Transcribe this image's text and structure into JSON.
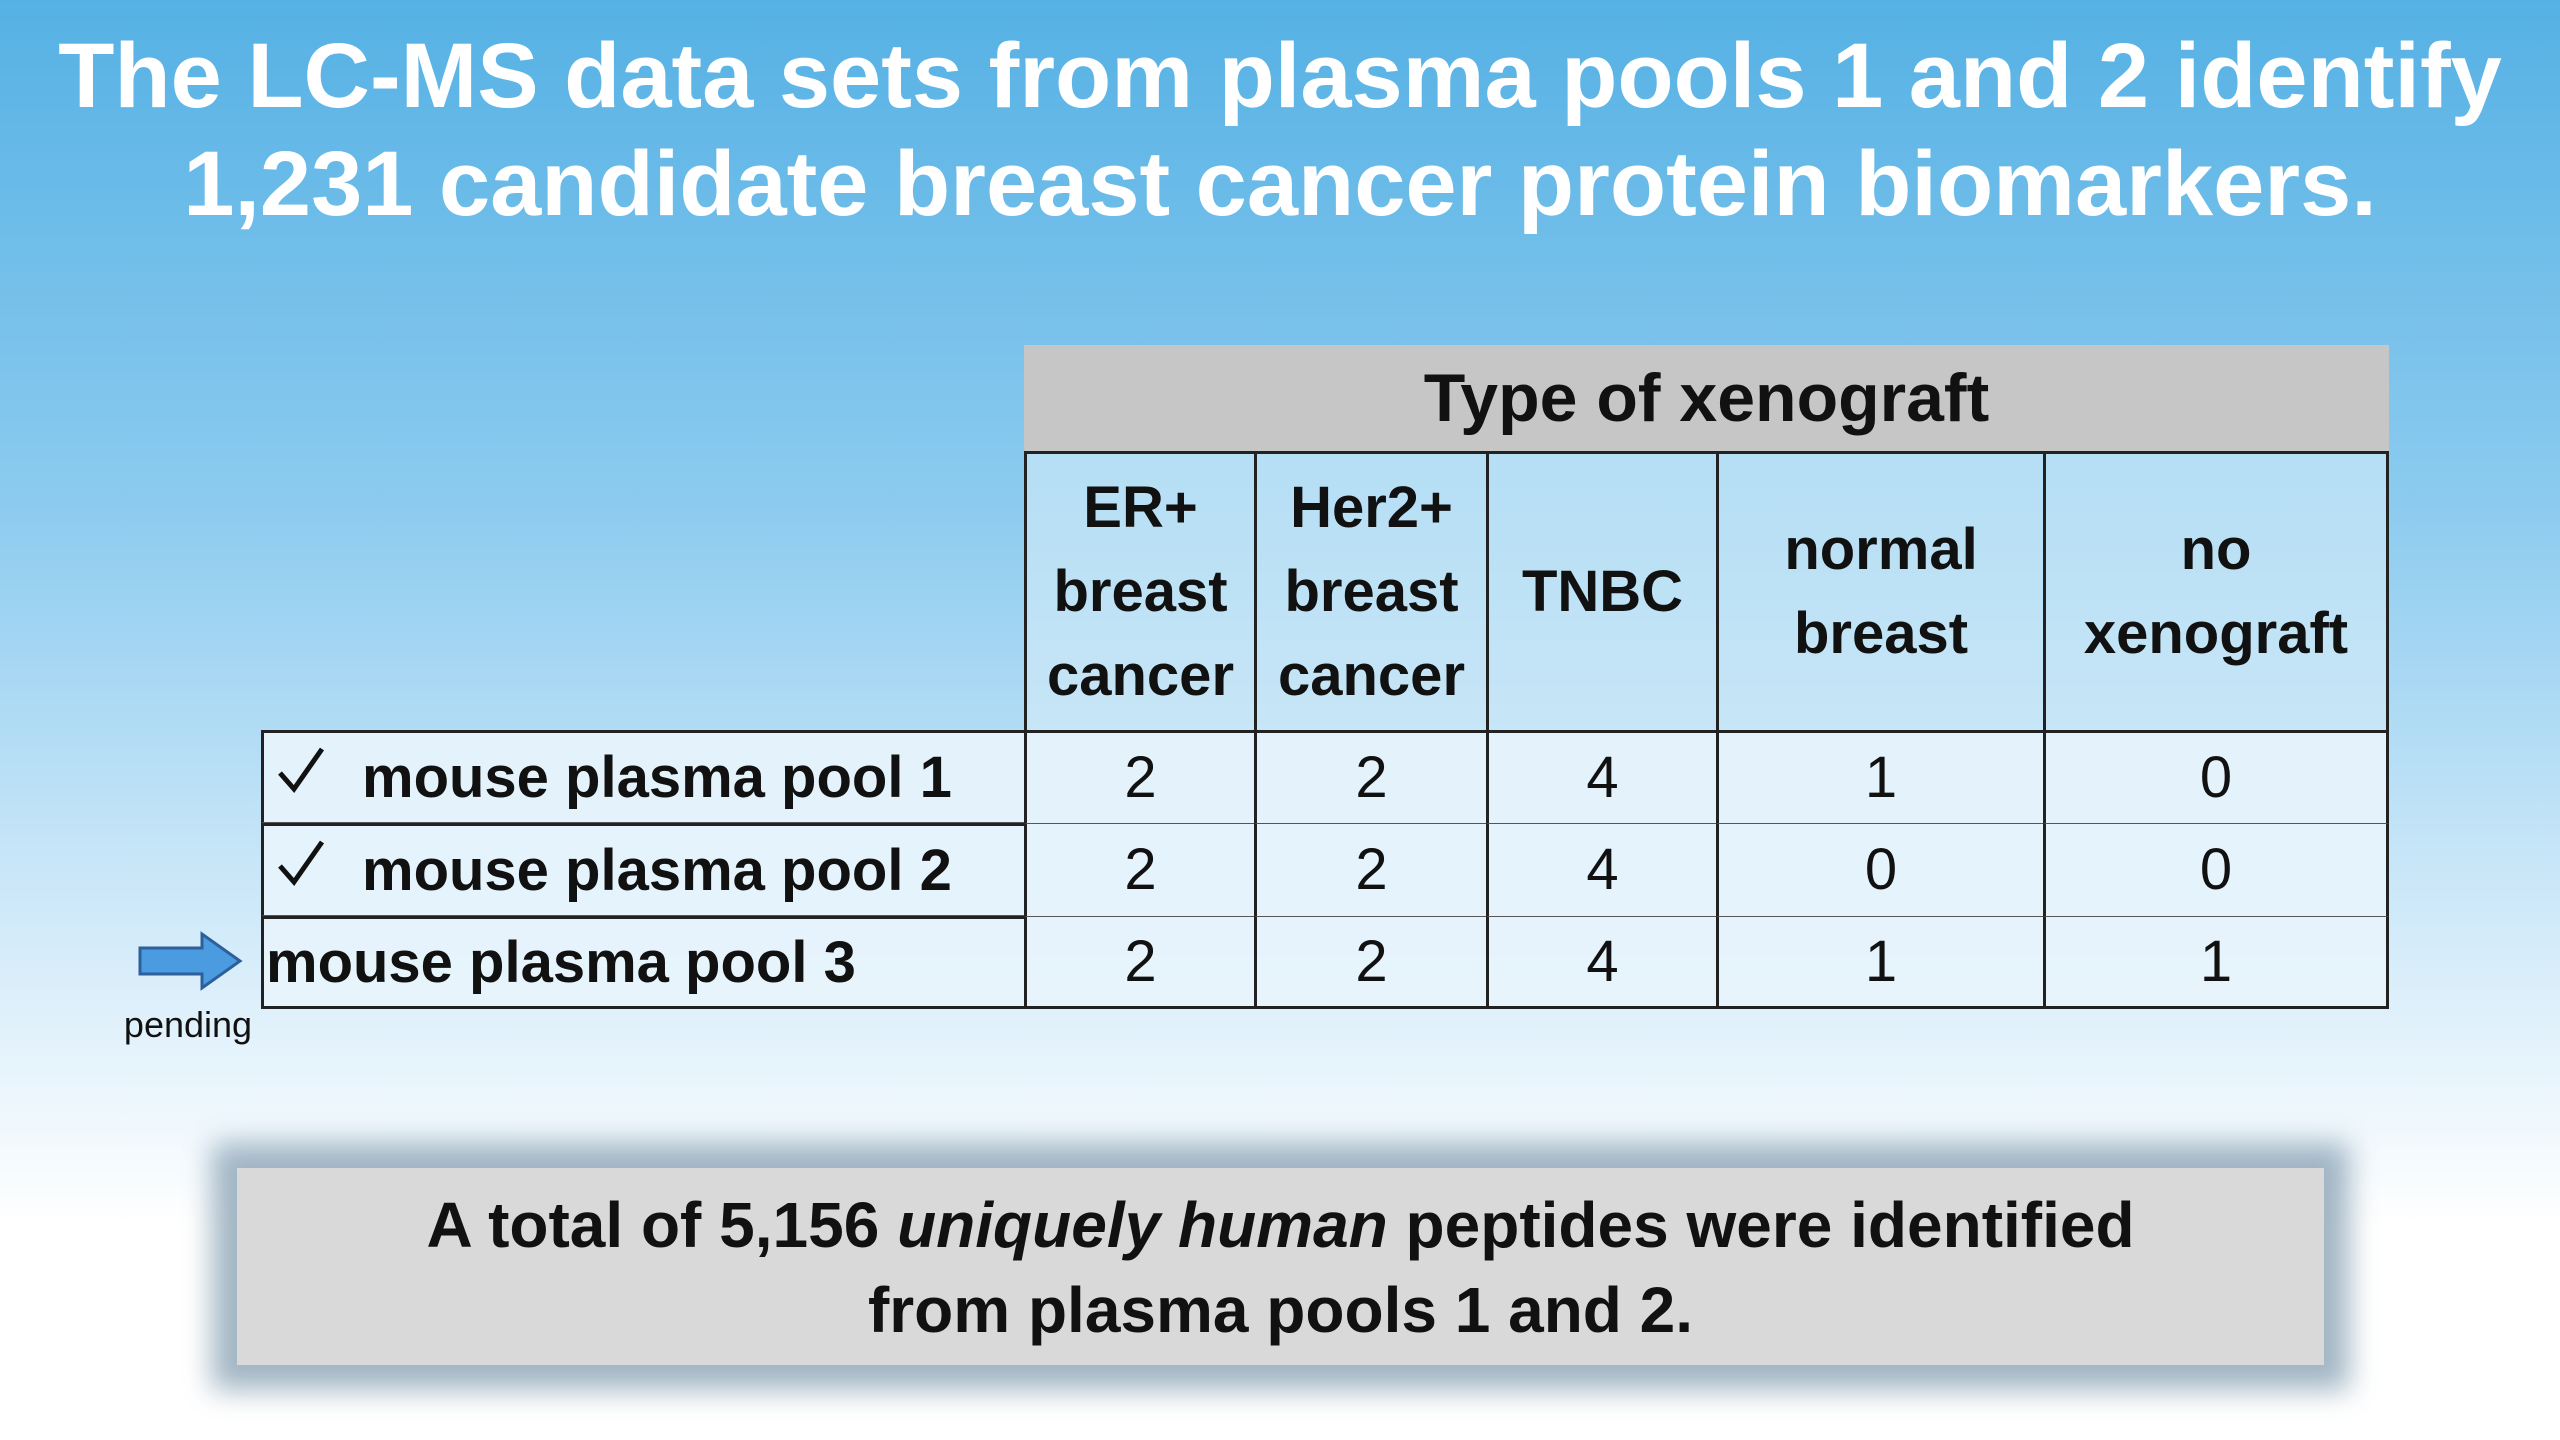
{
  "title": {
    "lines": [
      "The LC-MS data sets from plasma pools 1 and 2 identify",
      "1,231 candidate breast cancer protein biomarkers."
    ]
  },
  "table": {
    "group_header": "Type of xenograft",
    "columns": [
      [
        "ER+",
        "breast",
        "cancer"
      ],
      [
        "Her2+",
        "breast",
        "cancer"
      ],
      [
        "TNBC"
      ],
      [
        "normal",
        "breast"
      ],
      [
        "no",
        "xenograft"
      ]
    ],
    "rows": [
      {
        "label": "mouse plasma pool 1",
        "cells": [
          2,
          2,
          4,
          1,
          0
        ]
      },
      {
        "label": "mouse plasma pool 2",
        "cells": [
          2,
          2,
          4,
          0,
          0
        ]
      },
      {
        "label": "mouse plasma pool 3",
        "cells": [
          2,
          2,
          4,
          1,
          1
        ]
      }
    ]
  },
  "annotation": "pending",
  "summary": {
    "lines": [
      [
        "A total of 5,156 ",
        "uniquely human",
        " peptides were identified"
      ],
      [
        "from plasma pools 1 and 2."
      ]
    ]
  }
}
